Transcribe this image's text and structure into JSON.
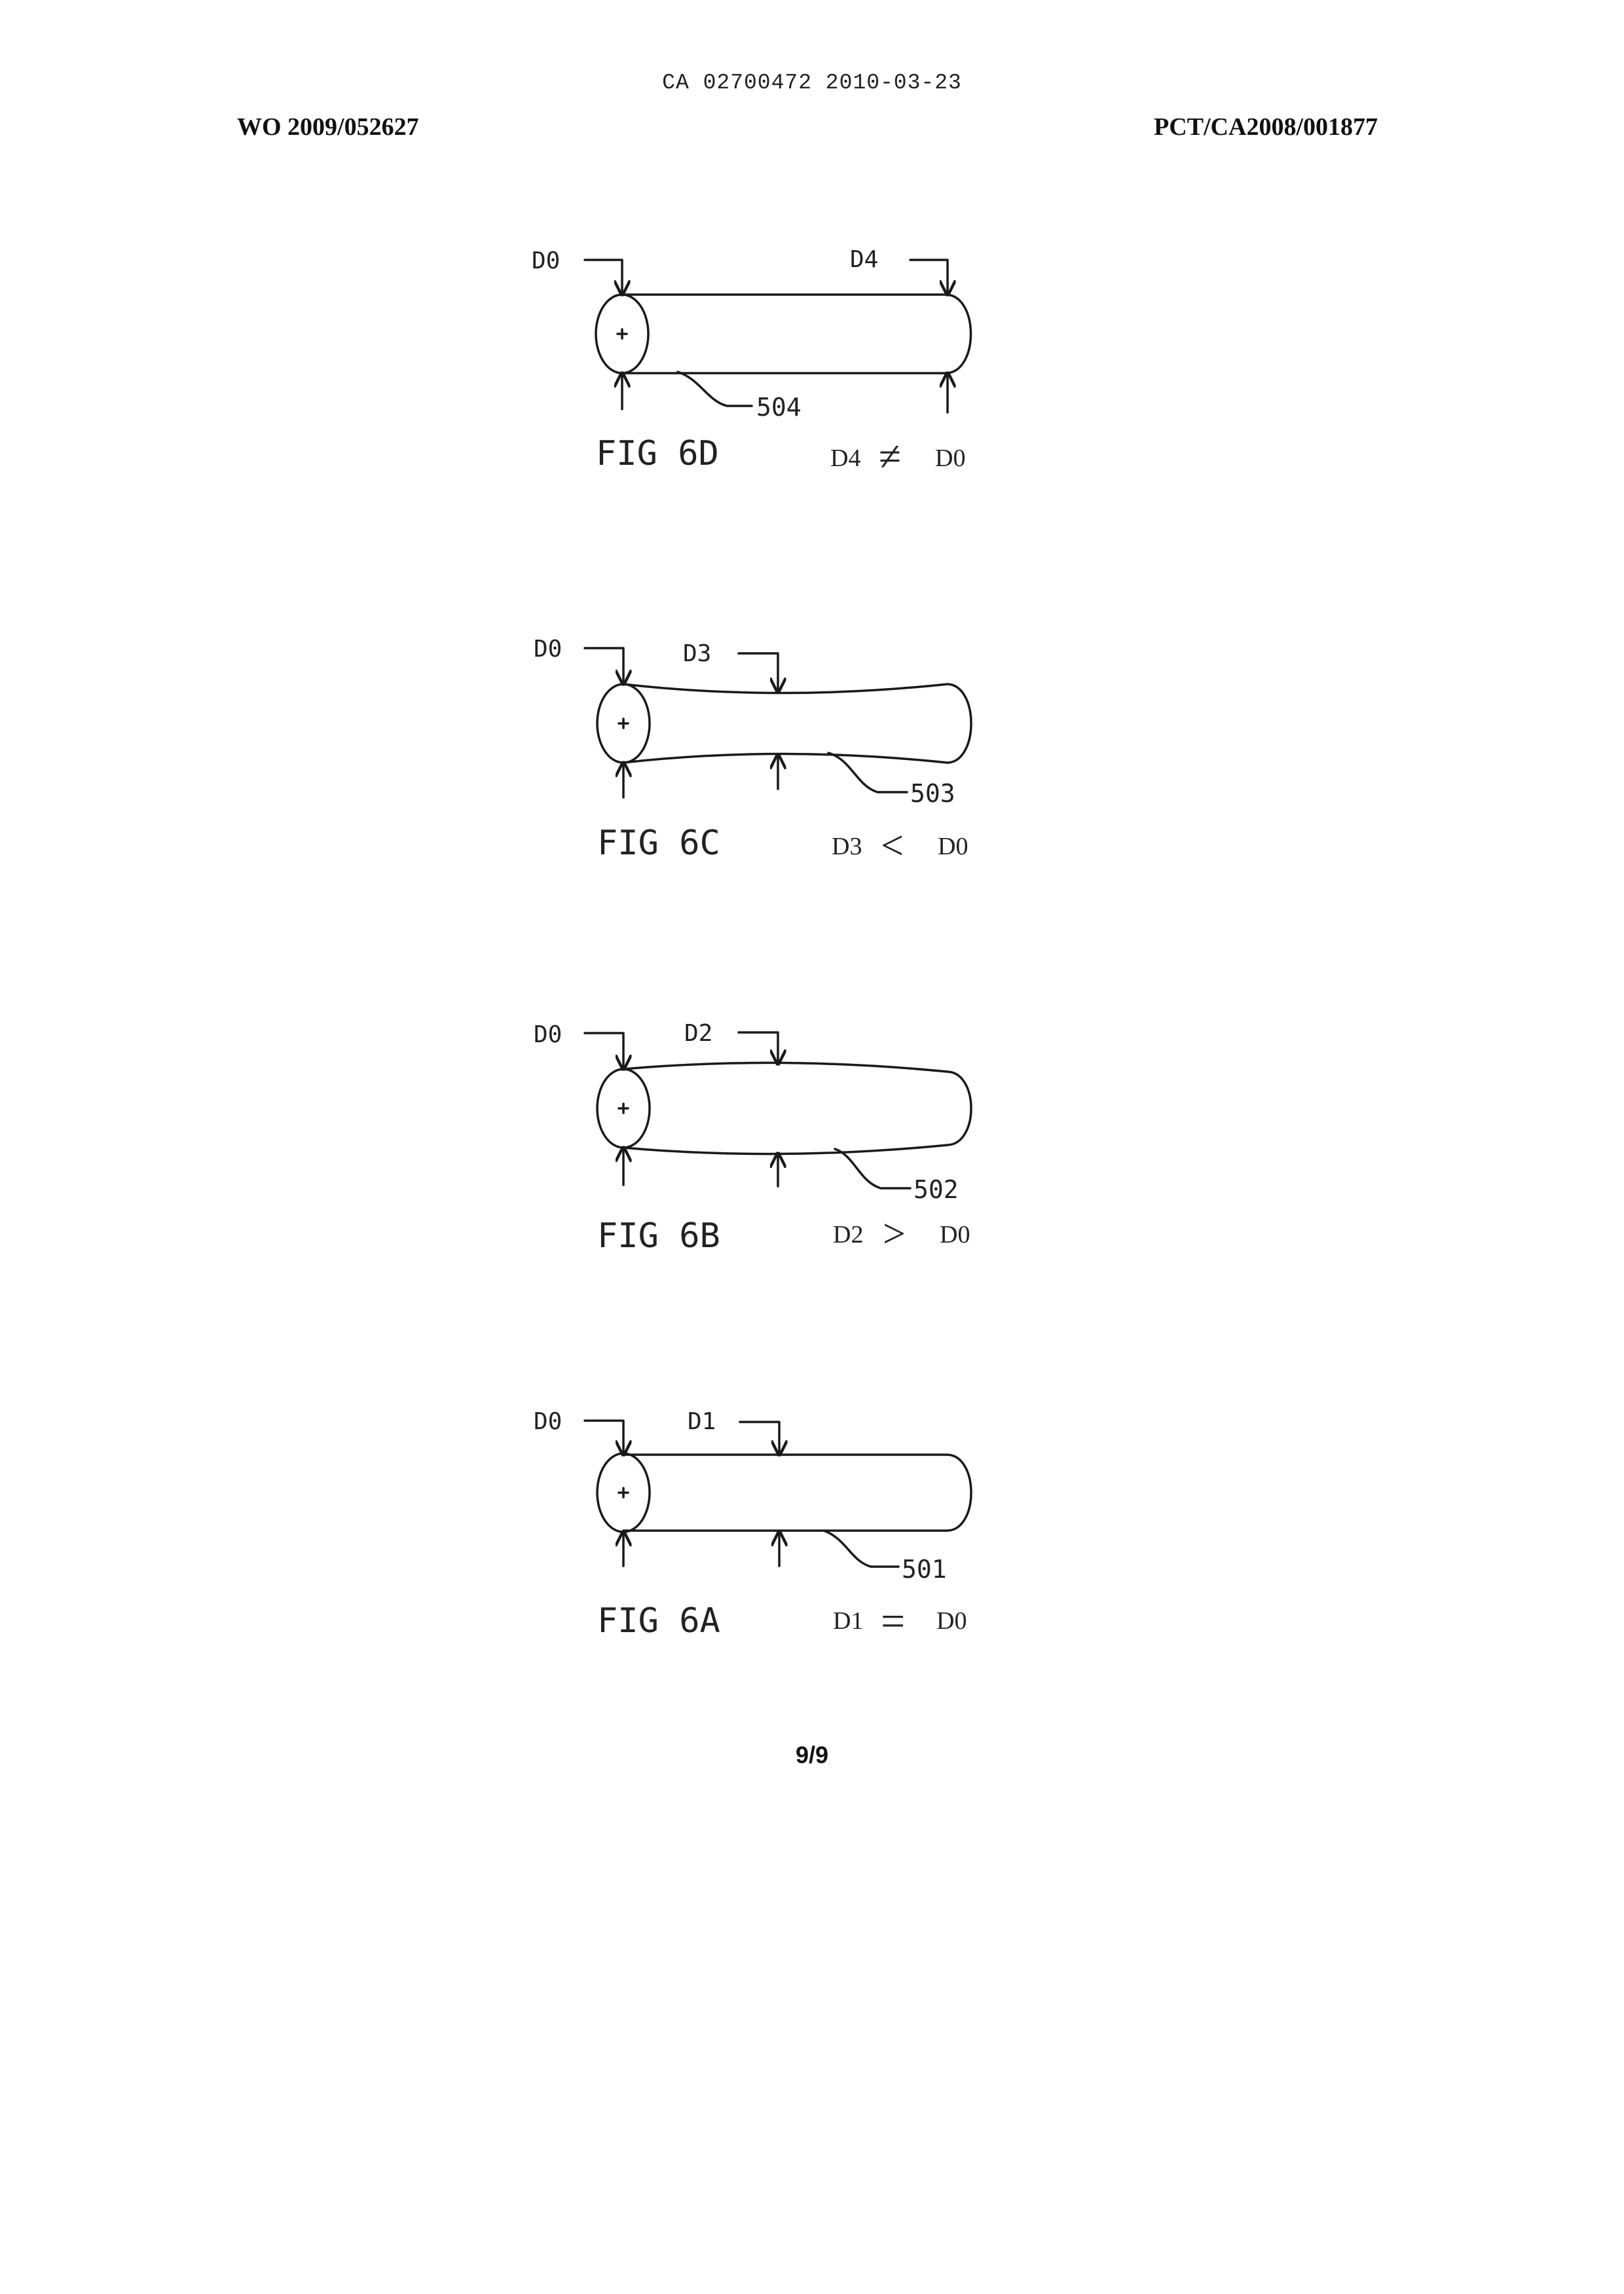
{
  "header": {
    "ca_number": "CA 02700472 2010-03-23",
    "wo_number": "WO 2009/052627",
    "pct_number": "PCT/CA2008/001877"
  },
  "figures": [
    {
      "id": "fig6d",
      "caption": "FIG 6D",
      "left_label": "D0",
      "right_label": "D4",
      "reference": "504",
      "relation": {
        "left": "D4",
        "symbol": "≠",
        "right": "D0"
      }
    },
    {
      "id": "fig6c",
      "caption": "FIG 6C",
      "left_label": "D0",
      "right_label": "D3",
      "reference": "503",
      "relation": {
        "left": "D3",
        "symbol": "<",
        "right": "D0"
      }
    },
    {
      "id": "fig6b",
      "caption": "FIG 6B",
      "left_label": "D0",
      "right_label": "D2",
      "reference": "502",
      "relation": {
        "left": "D2",
        "symbol": ">",
        "right": "D0"
      }
    },
    {
      "id": "fig6a",
      "caption": "FIG 6A",
      "left_label": "D0",
      "right_label": "D1",
      "reference": "501",
      "relation": {
        "left": "D1",
        "symbol": "=",
        "right": "D0"
      }
    }
  ],
  "footer": {
    "page_number": "9/9"
  }
}
